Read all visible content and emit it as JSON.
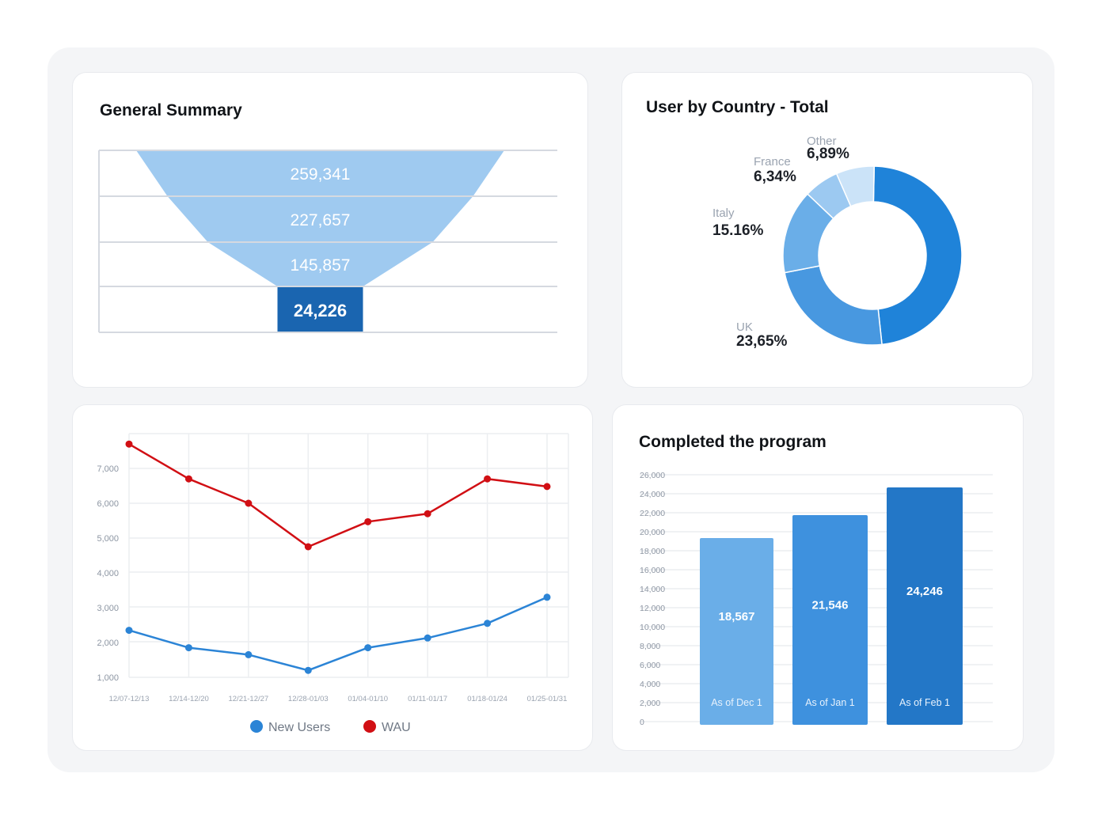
{
  "cards": {
    "summary": {
      "title": "General Summary"
    },
    "country": {
      "title": "User by Country - Total"
    },
    "completed": {
      "title": "Completed the program"
    }
  },
  "chart_data": [
    {
      "type": "funnel",
      "title": "General Summary",
      "values": [
        259341,
        227657,
        145857,
        24226
      ],
      "labels": [
        "259,341",
        "227,657",
        "145,857",
        "24,226"
      ],
      "colors": {
        "funnel": "#9fcaf0",
        "highlight": "#1a65b0"
      }
    },
    {
      "type": "pie",
      "title": "User by Country - Total",
      "donut": true,
      "slices": [
        {
          "label": "",
          "value": 48.0,
          "display": "",
          "color": "#1f83d9"
        },
        {
          "label": "UK",
          "value": 23.65,
          "display": "23,65%",
          "color": "#4898e0"
        },
        {
          "label": "Italy",
          "value": 15.16,
          "display": "15.16%",
          "color": "#6aaee8"
        },
        {
          "label": "France",
          "value": 6.34,
          "display": "6,34%",
          "color": "#9cc9f1"
        },
        {
          "label": "Other",
          "value": 6.89,
          "display": "6,89%",
          "color": "#cbe3f8"
        }
      ]
    },
    {
      "type": "line",
      "title": "",
      "xlabel": "",
      "ylabel": "",
      "categories": [
        "12/07-12/13",
        "12/14-12/20",
        "12/21-12/27",
        "12/28-01/03",
        "01/04-01/10",
        "01/11-01/17",
        "01/18-01/24",
        "01/25-01/31"
      ],
      "y_ticks": [
        1000,
        2000,
        3000,
        4000,
        5000,
        6000,
        7000
      ],
      "y_tick_labels": [
        "1,000",
        "2,000",
        "3,000",
        "4,000",
        "5,000",
        "6,000",
        "7,000"
      ],
      "ylim": [
        1000,
        7700
      ],
      "grid": true,
      "legend": "bottom-center",
      "series": [
        {
          "name": "New Users",
          "color": "#2b84d6",
          "values": [
            2350,
            1850,
            1650,
            1200,
            1850,
            2130,
            2550,
            3300
          ]
        },
        {
          "name": "WAU",
          "color": "#d10f14",
          "values": [
            7700,
            6700,
            6000,
            4750,
            5470,
            5700,
            6700,
            6480
          ]
        }
      ]
    },
    {
      "type": "bar",
      "title": "Completed the program",
      "categories": [
        "As of Dec 1",
        "As of Jan 1",
        "As of Feb 1"
      ],
      "values": [
        18567,
        21546,
        24246
      ],
      "value_labels": [
        "18,567",
        "21,546",
        "24,246"
      ],
      "colors": [
        "#6aaee8",
        "#3e91de",
        "#2377c7"
      ],
      "y_ticks": [
        0,
        2000,
        4000,
        6000,
        8000,
        10000,
        12000,
        14000,
        16000,
        18000,
        20000,
        22000,
        24000,
        26000
      ],
      "y_tick_labels": [
        "0",
        "2,000",
        "4,000",
        "6,000",
        "8,000",
        "10,000",
        "12,000",
        "14,000",
        "16,000",
        "18,000",
        "20,000",
        "22,000",
        "24,000",
        "26,000"
      ],
      "ylim": [
        0,
        26000
      ],
      "grid": true
    }
  ]
}
